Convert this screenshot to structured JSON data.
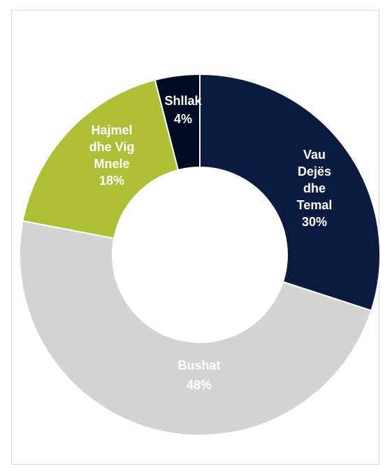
{
  "chart_data": {
    "type": "pie",
    "variant": "donut",
    "categories": [
      "Vau Dejës dhe Temal",
      "Bushat",
      "Hajmel dhe Vig Mnele",
      "Shllak"
    ],
    "values": [
      30,
      48,
      18,
      4
    ],
    "unit": "%",
    "labels": [
      {
        "lines": [
          "Vau",
          "Dejës",
          "dhe",
          "Temal",
          "30%"
        ]
      },
      {
        "lines": [
          "Bushat",
          "48%"
        ]
      },
      {
        "lines": [
          "Hajmel",
          "dhe Vig",
          "Mnele",
          "18%"
        ]
      },
      {
        "lines": [
          "Shllak",
          "4%"
        ]
      }
    ],
    "colors": [
      "#0b1a3f",
      "#d3d3d3",
      "#aebf37",
      "#000c24"
    ],
    "label_colors": [
      "#ffffff",
      "#ffffff",
      "#ffffff",
      "#ffffff"
    ],
    "legend": "none",
    "title": ""
  }
}
